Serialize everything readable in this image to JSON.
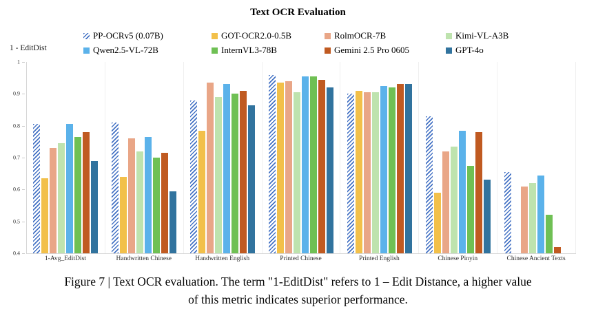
{
  "title": "Text OCR Evaluation",
  "y_axis": {
    "label": "1 - EditDist",
    "ticks": [
      "1",
      "0.9",
      "0.8",
      "0.7",
      "0.6",
      "0.5",
      "0.4"
    ],
    "min": 0.4,
    "max": 1.0
  },
  "chart_data": {
    "type": "bar",
    "title": "Text OCR Evaluation",
    "ylabel": "1 - EditDist",
    "ylim": [
      0.4,
      1.0
    ],
    "legend_position": "top",
    "grid": "vertical-group-separators",
    "categories": [
      "1-Avg_EditDist",
      "Handwritten Chinese",
      "Handwritten English",
      "Printed Chinese",
      "Printed English",
      "Chinese Pinyin",
      "Chinese Ancient Texts"
    ],
    "series": [
      {
        "name": "PP-OCRv5 (0.07B)",
        "color": "#4472C4",
        "pattern": "hatched",
        "values": [
          0.805,
          0.81,
          0.88,
          0.96,
          0.9,
          0.83,
          0.655
        ]
      },
      {
        "name": "GOT-OCR2.0-0.5B",
        "color": "#F2C04A",
        "pattern": "solid",
        "values": [
          0.635,
          0.64,
          0.785,
          0.935,
          0.91,
          0.59,
          null
        ]
      },
      {
        "name": "RolmOCR-7B",
        "color": "#E9A687",
        "pattern": "solid",
        "values": [
          0.73,
          0.76,
          0.935,
          0.94,
          0.905,
          0.72,
          0.61
        ]
      },
      {
        "name": "Kimi-VL-A3B",
        "color": "#BEE3AE",
        "pattern": "solid",
        "values": [
          0.745,
          0.72,
          0.89,
          0.905,
          0.905,
          0.735,
          0.62
        ]
      },
      {
        "name": "Qwen2.5-VL-72B",
        "color": "#5BB2EA",
        "pattern": "solid",
        "values": [
          0.805,
          0.765,
          0.93,
          0.955,
          0.925,
          0.785,
          0.645
        ]
      },
      {
        "name": "InternVL3-78B",
        "color": "#6FC054",
        "pattern": "solid",
        "values": [
          0.765,
          0.7,
          0.9,
          0.955,
          0.92,
          0.675,
          0.52
        ]
      },
      {
        "name": "Gemini 2.5 Pro 0605",
        "color": "#C05A21",
        "pattern": "solid",
        "values": [
          0.78,
          0.715,
          0.91,
          0.945,
          0.93,
          0.78,
          0.42
        ]
      },
      {
        "name": "GPT-4o",
        "color": "#31739E",
        "pattern": "solid",
        "values": [
          0.69,
          0.595,
          0.865,
          0.92,
          0.93,
          0.63,
          null
        ]
      }
    ]
  },
  "caption": {
    "line1": "Figure 7 | Text OCR evaluation. The term \"1-EditDist\" refers to 1 – Edit Distance, a higher value",
    "line2": "of this metric indicates superior performance."
  }
}
